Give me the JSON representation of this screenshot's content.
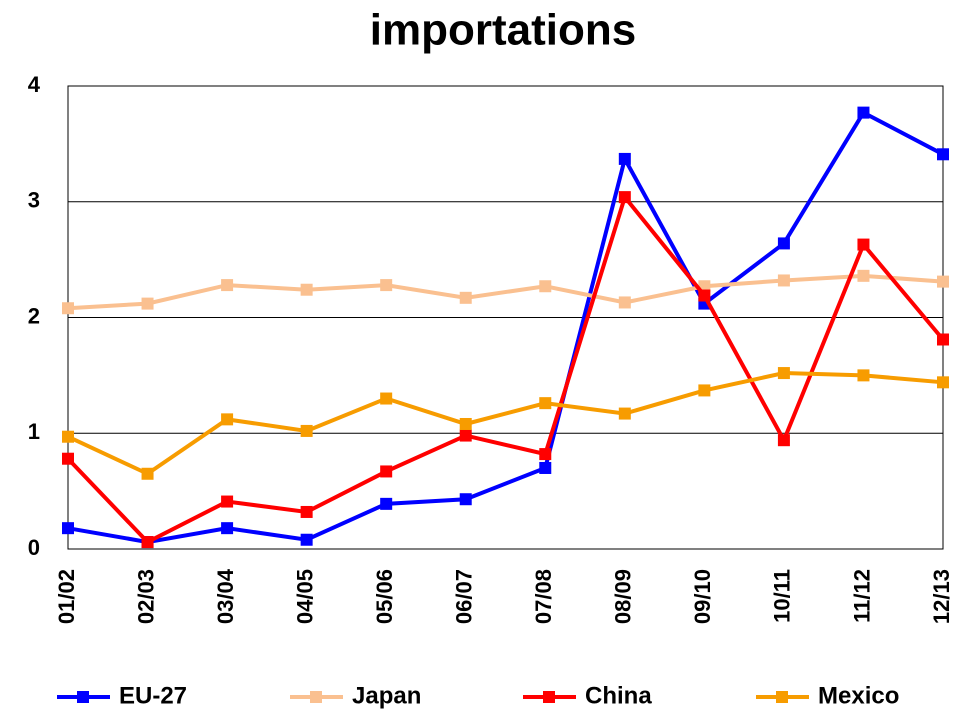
{
  "chart_data": {
    "type": "line",
    "title": "importations",
    "categories": [
      "01/02",
      "02/03",
      "03/04",
      "04/05",
      "05/06",
      "06/07",
      "07/08",
      "08/09",
      "09/10",
      "10/11",
      "11/12",
      "12/13"
    ],
    "series": [
      {
        "name": "EU-27",
        "color": "#0000ff",
        "values": [
          0.18,
          0.06,
          0.18,
          0.08,
          0.39,
          0.43,
          0.7,
          3.37,
          2.12,
          2.64,
          3.77,
          3.41
        ]
      },
      {
        "name": "Japan",
        "color": "#fac090",
        "values": [
          2.08,
          2.12,
          2.28,
          2.24,
          2.28,
          2.17,
          2.27,
          2.13,
          2.27,
          2.32,
          2.36,
          2.31
        ]
      },
      {
        "name": "China",
        "color": "#ff0000",
        "values": [
          0.78,
          0.06,
          0.41,
          0.32,
          0.67,
          0.98,
          0.82,
          3.04,
          2.19,
          0.94,
          2.63,
          1.81
        ]
      },
      {
        "name": "Mexico",
        "color": "#f79c00",
        "values": [
          0.97,
          0.65,
          1.12,
          1.02,
          1.3,
          1.08,
          1.26,
          1.17,
          1.37,
          1.52,
          1.5,
          1.44
        ]
      }
    ],
    "ylim": [
      0,
      4
    ],
    "yticks": [
      0,
      1,
      2,
      3,
      4
    ],
    "grid": true,
    "legend": "bottom"
  }
}
